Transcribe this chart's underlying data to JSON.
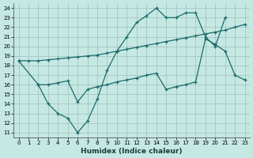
{
  "xlabel": "Humidex (Indice chaleur)",
  "bg_color": "#c5e8e3",
  "grid_color": "#9dbfbb",
  "line_color": "#1a6b6b",
  "xlim": [
    -0.5,
    23.5
  ],
  "ylim": [
    10.5,
    24.5
  ],
  "xticks": [
    0,
    1,
    2,
    3,
    4,
    5,
    6,
    7,
    8,
    9,
    10,
    11,
    12,
    13,
    14,
    15,
    16,
    17,
    18,
    19,
    20,
    21,
    22,
    23
  ],
  "yticks": [
    11,
    12,
    13,
    14,
    15,
    16,
    17,
    18,
    19,
    20,
    21,
    22,
    23,
    24
  ],
  "line1_x": [
    0,
    1,
    2,
    3,
    4,
    5,
    6,
    7,
    8,
    9,
    10,
    11,
    12,
    13,
    14,
    15,
    16,
    17,
    18,
    19,
    20,
    21,
    22,
    23
  ],
  "line1_y": [
    18.5,
    18.5,
    18.5,
    18.6,
    18.7,
    18.8,
    18.9,
    19.0,
    19.1,
    19.3,
    19.5,
    19.7,
    19.9,
    20.1,
    20.3,
    20.5,
    20.7,
    20.9,
    21.1,
    21.3,
    21.5,
    21.7,
    22.0,
    22.3
  ],
  "line2_x": [
    0,
    2,
    3,
    4,
    5,
    6,
    7,
    8,
    9,
    10,
    11,
    12,
    13,
    14,
    15,
    16,
    17,
    18,
    19,
    20,
    21
  ],
  "line2_y": [
    18.5,
    16.0,
    14.0,
    13.0,
    12.5,
    11.0,
    12.2,
    14.5,
    17.5,
    19.5,
    21.0,
    22.5,
    23.2,
    24.0,
    23.0,
    23.0,
    23.5,
    23.5,
    21.0,
    20.0,
    23.0
  ],
  "line3_x": [
    2,
    3,
    4,
    5,
    6,
    7,
    8,
    9,
    10,
    11,
    12,
    13,
    14,
    15,
    16,
    17,
    18,
    19,
    20,
    21,
    22,
    23
  ],
  "line3_y": [
    16.0,
    16.0,
    16.2,
    16.4,
    14.2,
    15.5,
    15.8,
    16.0,
    16.3,
    16.5,
    16.7,
    17.0,
    17.2,
    15.5,
    15.8,
    16.0,
    16.3,
    20.8,
    20.2,
    19.5,
    17.0,
    16.5
  ]
}
